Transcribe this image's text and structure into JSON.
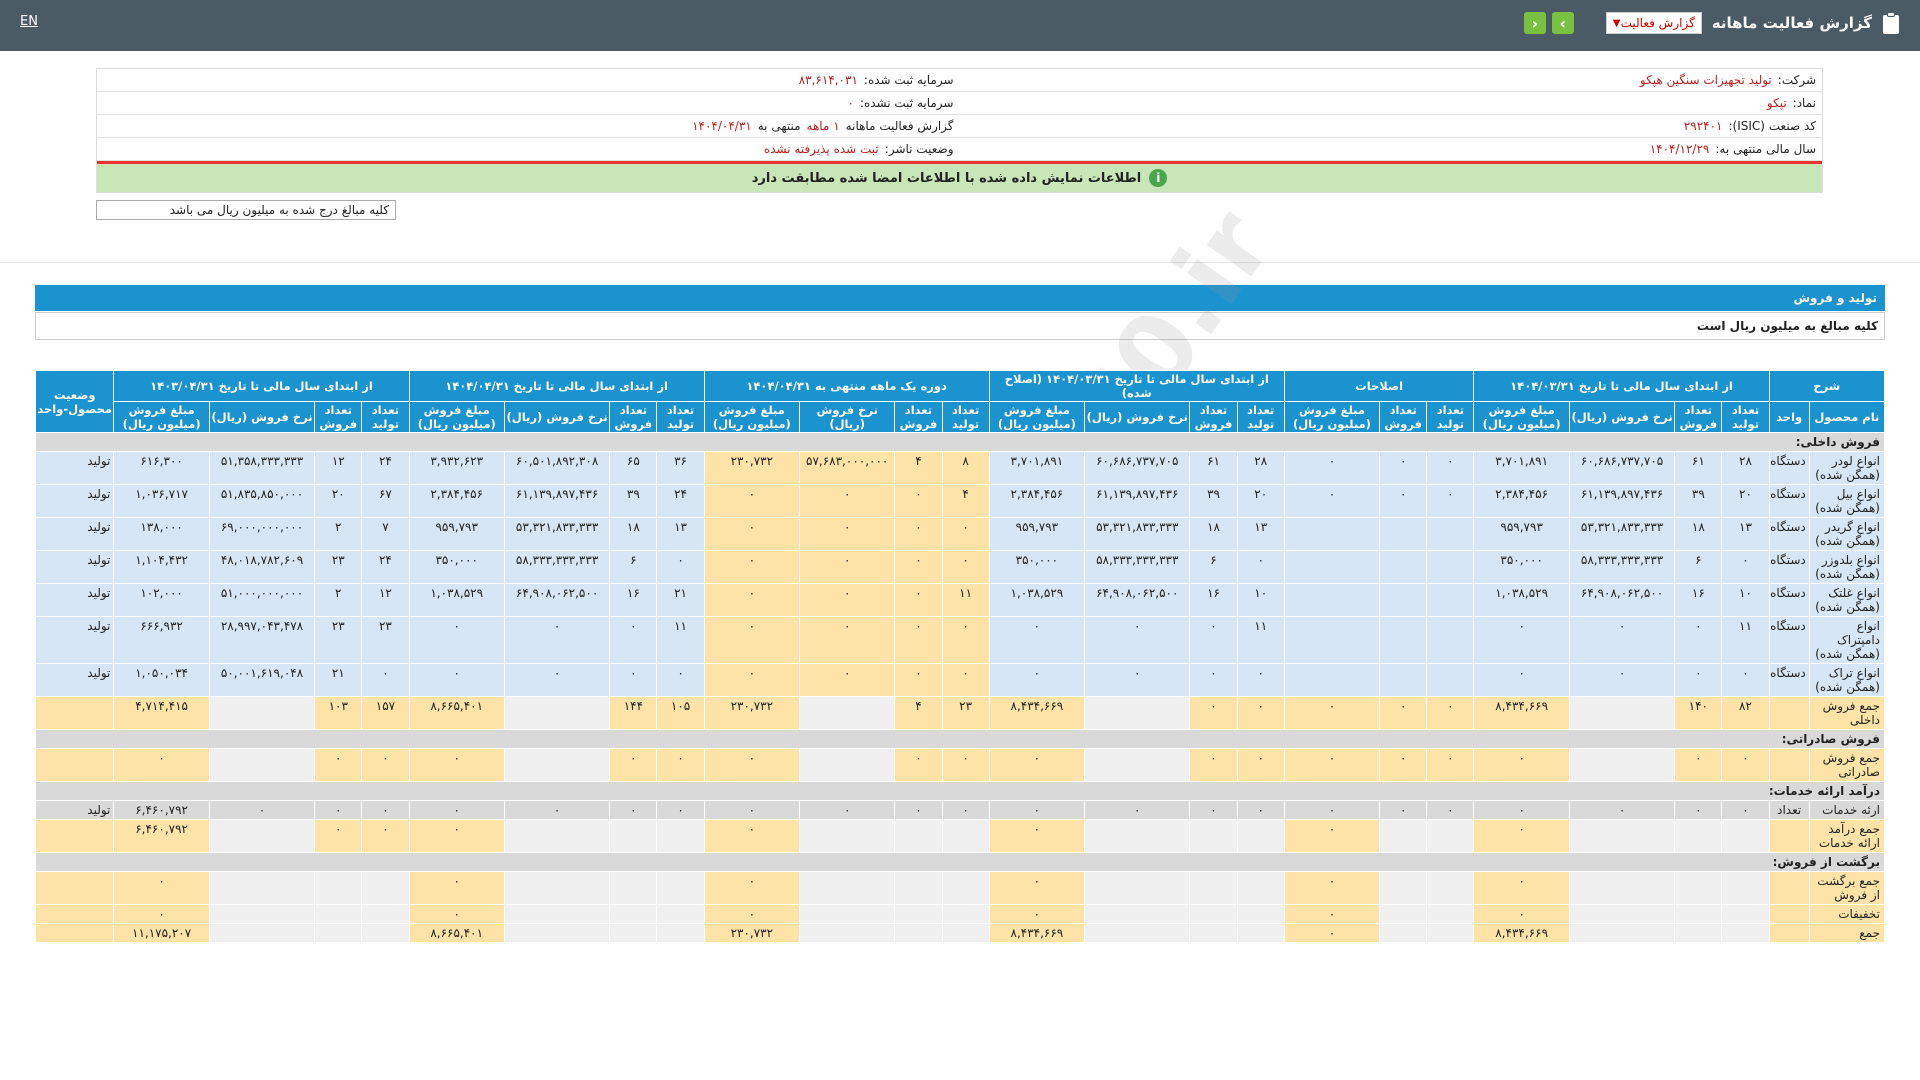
{
  "topbar": {
    "lang": "EN",
    "title": "گزارش فعالیت ماهانه",
    "select_value": "گزارش فعالیت",
    "colors": {
      "bg": "#4b5b66",
      "nav": "#7ac142"
    }
  },
  "info": {
    "company_label": "شرکت:",
    "company": "تولید تجهیزات سنگین هپکو",
    "registered_capital_label": "سرمایه ثبت شده:",
    "registered_capital": "۸۳,۶۱۴,۰۳۱",
    "symbol_label": "نماد:",
    "symbol": "تپکو",
    "unregistered_capital_label": "سرمایه ثبت نشده:",
    "unregistered_capital": "۰",
    "isic_label": "کد صنعت (ISIC):",
    "isic": "۲۹۲۴۰۱",
    "report_label": "گزارش فعالیت ماهانه",
    "report_period": "۱ ماهه",
    "report_end_label": "منتهی به",
    "report_end": "۱۴۰۴/۰۴/۳۱",
    "fiscal_label": "سال مالی منتهی به:",
    "fiscal": "۱۴۰۴/۱۲/۲۹",
    "status_label": "وضعیت ناشر:",
    "status": "ثبت شده پذیرفته نشده",
    "banner": "اطلاعات نمایش داده شده با اطلاعات امضا شده مطابقت دارد",
    "unit_note": "کلیه مبالغ درج شده به میلیون ریال می باشد"
  },
  "section": {
    "title": "تولید و فروش",
    "note": "کلیه مبالغ به میلیون ریال است"
  },
  "watermark": "@Codal360.ir",
  "table": {
    "groups": {
      "desc": "شرح",
      "g1": "از ابتدای سال مالی تا تاریخ ۱۴۰۴/۰۳/۳۱",
      "g2": "اصلاحات",
      "g3": "از ابتدای سال مالی تا تاریخ ۱۴۰۴/۰۳/۳۱ (اصلاح شده)",
      "g4": "دوره یک ماهه منتهی به ۱۴۰۴/۰۴/۳۱",
      "g5": "از ابتدای سال مالی تا تاریخ ۱۴۰۴/۰۴/۳۱",
      "g6": "از ابتدای سال مالی تا تاریخ ۱۴۰۳/۰۴/۳۱",
      "status": "وضعیت محصول-واحد"
    },
    "sub": {
      "name": "نام محصول",
      "unit": "واحد",
      "prod": "تعداد تولید",
      "sale": "تعداد فروش",
      "rate": "نرخ فروش (ریال)",
      "amount": "مبلغ فروش (میلیون ریال)"
    },
    "cats": {
      "domestic": "فروش داخلی:",
      "export": "فروش صادراتی:",
      "services": "درآمد ارائه خدمات:",
      "returns": "برگشت از فروش:"
    },
    "rows": [
      {
        "name": "انواع لودر (همگن شده)",
        "unit": "دستگاه",
        "c": [
          "۲۸",
          "۶۱",
          "۶۰,۶۸۶,۷۳۷,۷۰۵",
          "۳,۷۰۱,۸۹۱",
          "۰",
          "۰",
          "۰",
          "۲۸",
          "۶۱",
          "۶۰,۶۸۶,۷۳۷,۷۰۵",
          "۳,۷۰۱,۸۹۱",
          "۸",
          "۴",
          "۵۷,۶۸۳,۰۰۰,۰۰۰",
          "۲۳۰,۷۳۲",
          "۳۶",
          "۶۵",
          "۶۰,۵۰۱,۸۹۲,۳۰۸",
          "۳,۹۳۲,۶۲۳",
          "۲۴",
          "۱۲",
          "۵۱,۳۵۸,۳۳۳,۳۳۳",
          "۶۱۶,۳۰۰"
        ],
        "status": "تولید"
      },
      {
        "name": "انواع بیل (همگن شده)",
        "unit": "دستگاه",
        "c": [
          "۲۰",
          "۳۹",
          "۶۱,۱۳۹,۸۹۷,۴۳۶",
          "۲,۳۸۴,۴۵۶",
          "۰",
          "۰",
          "۰",
          "۲۰",
          "۳۹",
          "۶۱,۱۳۹,۸۹۷,۴۳۶",
          "۲,۳۸۴,۴۵۶",
          "۴",
          "۰",
          "۰",
          "۰",
          "۲۴",
          "۳۹",
          "۶۱,۱۳۹,۸۹۷,۴۳۶",
          "۲,۳۸۴,۴۵۶",
          "۶۷",
          "۲۰",
          "۵۱,۸۳۵,۸۵۰,۰۰۰",
          "۱,۰۳۶,۷۱۷"
        ],
        "status": "تولید"
      },
      {
        "name": "انواع گریدر (همگن شده)",
        "unit": "دستگاه",
        "c": [
          "۱۳",
          "۱۸",
          "۵۳,۳۲۱,۸۳۳,۳۳۳",
          "۹۵۹,۷۹۳",
          "",
          "",
          "",
          "۱۳",
          "۱۸",
          "۵۳,۳۲۱,۸۳۳,۳۳۳",
          "۹۵۹,۷۹۳",
          "۰",
          "۰",
          "۰",
          "۰",
          "۱۳",
          "۱۸",
          "۵۳,۳۲۱,۸۳۳,۳۳۳",
          "۹۵۹,۷۹۳",
          "۷",
          "۲",
          "۶۹,۰۰۰,۰۰۰,۰۰۰",
          "۱۳۸,۰۰۰"
        ],
        "status": "تولید"
      },
      {
        "name": "انواع بلدوزر (همگن شده)",
        "unit": "دستگاه",
        "c": [
          "۰",
          "۶",
          "۵۸,۳۳۳,۳۳۳,۳۳۳",
          "۳۵۰,۰۰۰",
          "",
          "",
          "",
          "۰",
          "۶",
          "۵۸,۳۳۳,۳۳۳,۳۳۳",
          "۳۵۰,۰۰۰",
          "۰",
          "۰",
          "۰",
          "۰",
          "۰",
          "۶",
          "۵۸,۳۳۳,۳۳۳,۳۳۳",
          "۳۵۰,۰۰۰",
          "۲۴",
          "۲۳",
          "۴۸,۰۱۸,۷۸۲,۶۰۹",
          "۱,۱۰۴,۴۳۲"
        ],
        "status": "تولید"
      },
      {
        "name": "انواع غلتک (همگن شده)",
        "unit": "دستگاه",
        "c": [
          "۱۰",
          "۱۶",
          "۶۴,۹۰۸,۰۶۲,۵۰۰",
          "۱,۰۳۸,۵۲۹",
          "",
          "",
          "",
          "۱۰",
          "۱۶",
          "۶۴,۹۰۸,۰۶۲,۵۰۰",
          "۱,۰۳۸,۵۲۹",
          "۱۱",
          "۰",
          "۰",
          "۰",
          "۲۱",
          "۱۶",
          "۶۴,۹۰۸,۰۶۲,۵۰۰",
          "۱,۰۳۸,۵۲۹",
          "۱۲",
          "۲",
          "۵۱,۰۰۰,۰۰۰,۰۰۰",
          "۱۰۲,۰۰۰"
        ],
        "status": "تولید"
      },
      {
        "name": "انواع دامپتراک (همگن شده)",
        "unit": "دستگاه",
        "c": [
          "۱۱",
          "۰",
          "۰",
          "۰",
          "",
          "",
          "",
          "۱۱",
          "۰",
          "۰",
          "۰",
          "۰",
          "۰",
          "۰",
          "۰",
          "۱۱",
          "۰",
          "۰",
          "۰",
          "۲۳",
          "۲۳",
          "۲۸,۹۹۷,۰۴۳,۴۷۸",
          "۶۶۶,۹۳۲"
        ],
        "status": "تولید"
      },
      {
        "name": "انواع تراک (همگن شده)",
        "unit": "دستگاه",
        "c": [
          "۰",
          "۰",
          "۰",
          "۰",
          "",
          "",
          "",
          "۰",
          "۰",
          "۰",
          "۰",
          "۰",
          "۰",
          "۰",
          "۰",
          "۰",
          "۰",
          "۰",
          "۰",
          "۰",
          "۲۱",
          "۵۰,۰۰۱,۶۱۹,۰۴۸",
          "۱,۰۵۰,۰۳۴"
        ],
        "status": "تولید"
      }
    ],
    "domestic_total": {
      "name": "جمع فروش داخلی",
      "c": [
        "۸۲",
        "۱۴۰",
        "",
        "۸,۴۳۴,۶۶۹",
        "۰",
        "۰",
        "۰",
        "۰",
        "۰",
        "",
        "۸,۴۳۴,۶۶۹",
        "۲۳",
        "۴",
        "",
        "۲۳۰,۷۳۲",
        "۱۰۵",
        "۱۴۴",
        "",
        "۸,۶۶۵,۴۰۱",
        "۱۵۷",
        "۱۰۳",
        "",
        "۴,۷۱۴,۴۱۵"
      ]
    },
    "export_total": {
      "name": "جمع فروش صادراتی",
      "c": [
        "۰",
        "۰",
        "",
        "۰",
        "۰",
        "۰",
        "۰",
        "۰",
        "۰",
        "",
        "۰",
        "۰",
        "۰",
        "",
        "۰",
        "۰",
        "۰",
        "",
        "۰",
        "۰",
        "۰",
        "",
        "۰"
      ]
    },
    "service_row": {
      "name": "ارئه خدمات",
      "unit": "تعداد",
      "c": [
        "۰",
        "۰",
        "۰",
        "۰",
        "۰",
        "۰",
        "۰",
        "۰",
        "۰",
        "۰",
        "۰",
        "۰",
        "۰",
        "۰",
        "۰",
        "۰",
        "۰",
        "۰",
        "۰",
        "۰",
        "۰",
        "۰",
        "۶,۴۶۰,۷۹۲"
      ],
      "status": "تولید"
    },
    "service_total": {
      "name": "جمع درآمد ارائه خدمات",
      "c": [
        "",
        "",
        "",
        "۰",
        "",
        "",
        "۰",
        "",
        "",
        "",
        "۰",
        "",
        "",
        "",
        "۰",
        "",
        "",
        "",
        "۰",
        "۰",
        "۰",
        "",
        "۶,۴۶۰,۷۹۲"
      ]
    },
    "returns_total": {
      "name": "جمع برگشت از فروش",
      "c": [
        "",
        "",
        "",
        "۰",
        "",
        "",
        "۰",
        "",
        "",
        "",
        "۰",
        "",
        "",
        "",
        "۰",
        "",
        "",
        "",
        "۰",
        "",
        "",
        "",
        "۰"
      ]
    },
    "discounts": {
      "name": "تخفیفات",
      "c": [
        "",
        "",
        "",
        "۰",
        "",
        "",
        "۰",
        "",
        "",
        "",
        "۰",
        "",
        "",
        "",
        "۰",
        "",
        "",
        "",
        "۰",
        "",
        "",
        "",
        "۰"
      ]
    },
    "grand_total": {
      "name": "جمع",
      "c": [
        "",
        "",
        "",
        "۸,۴۳۴,۶۶۹",
        "",
        "",
        "۰",
        "",
        "",
        "",
        "۸,۴۳۴,۶۶۹",
        "",
        "",
        "",
        "۲۳۰,۷۳۲",
        "",
        "",
        "",
        "۸,۶۶۵,۴۰۱",
        "",
        "",
        "",
        "۱۱,۱۷۵,۲۰۷"
      ]
    }
  }
}
